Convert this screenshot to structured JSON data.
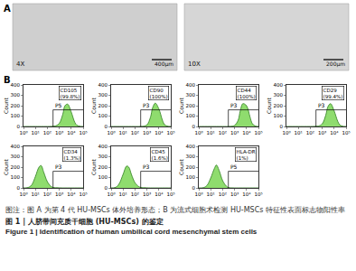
{
  "panel_a": {
    "label": "A",
    "images": [
      {
        "magnification": "4X",
        "scale_bar": "400μm"
      },
      {
        "magnification": "10X",
        "scale_bar": "200μm"
      }
    ]
  },
  "panel_b": {
    "label": "B"
  },
  "chart_data": [
    {
      "type": "area",
      "title": "CD105",
      "percent_label": "(99.8%)",
      "gate": {
        "label": "P5",
        "range": [
          300,
          100000
        ]
      },
      "ylabel": "Count",
      "color": "#8fdc6e",
      "x": [
        1,
        2,
        3,
        5,
        10,
        20,
        30,
        50,
        100,
        200,
        300,
        500,
        1000,
        2000,
        3000,
        5000,
        10000,
        20000,
        30000,
        50000,
        100000
      ],
      "values": [
        0,
        0,
        0,
        0,
        0,
        0,
        0,
        0,
        0,
        1,
        2,
        6,
        30,
        120,
        200,
        215,
        140,
        40,
        12,
        3,
        0
      ],
      "xlim": [
        1,
        100000
      ],
      "log": "x",
      "xticks": [
        {
          "value": 1,
          "label": "10⁰"
        },
        {
          "value": 10,
          "label": "10¹"
        },
        {
          "value": 100,
          "label": "10²"
        },
        {
          "value": 1000,
          "label": "10³"
        },
        {
          "value": 10000,
          "label": "10⁴"
        },
        {
          "value": 100000,
          "label": "10⁵"
        }
      ],
      "ylim": [
        0,
        400
      ],
      "yticks": [
        0,
        100,
        200,
        300,
        400
      ]
    },
    {
      "type": "area",
      "title": "CD90",
      "percent_label": "(100%)",
      "gate": {
        "label": "P3",
        "range": [
          300,
          100000
        ]
      },
      "ylabel": "Count",
      "color": "#8fdc6e",
      "x": [
        1,
        2,
        3,
        5,
        10,
        20,
        30,
        50,
        100,
        200,
        300,
        500,
        1000,
        2000,
        3000,
        5000,
        10000,
        20000,
        30000,
        50000,
        100000
      ],
      "values": [
        0,
        0,
        0,
        0,
        0,
        0,
        0,
        0,
        0,
        0,
        1,
        3,
        15,
        90,
        180,
        225,
        170,
        60,
        18,
        4,
        0
      ],
      "xlim": [
        1,
        100000
      ],
      "log": "x",
      "xticks": [
        {
          "value": 1,
          "label": "10⁰"
        },
        {
          "value": 10,
          "label": "10¹"
        },
        {
          "value": 100,
          "label": "10²"
        },
        {
          "value": 1000,
          "label": "10³"
        },
        {
          "value": 10000,
          "label": "10⁴"
        },
        {
          "value": 100000,
          "label": "10⁵"
        }
      ],
      "ylim": [
        0,
        400
      ],
      "yticks": [
        0,
        100,
        200,
        300,
        400
      ]
    },
    {
      "type": "area",
      "title": "CD44",
      "percent_label": "(100%)",
      "gate": {
        "label": "P3",
        "range": [
          300,
          100000
        ]
      },
      "ylabel": "Count",
      "color": "#8fdc6e",
      "x": [
        1,
        2,
        3,
        5,
        10,
        20,
        30,
        50,
        100,
        200,
        300,
        500,
        1000,
        2000,
        3000,
        5000,
        10000,
        20000,
        30000,
        50000,
        100000
      ],
      "values": [
        0,
        0,
        0,
        0,
        0,
        0,
        0,
        0,
        0,
        0,
        0,
        2,
        10,
        60,
        150,
        220,
        200,
        90,
        30,
        6,
        0
      ],
      "xlim": [
        1,
        100000
      ],
      "log": "x",
      "xticks": [
        {
          "value": 1,
          "label": "10⁰"
        },
        {
          "value": 10,
          "label": "10¹"
        },
        {
          "value": 100,
          "label": "10²"
        },
        {
          "value": 1000,
          "label": "10³"
        },
        {
          "value": 10000,
          "label": "10⁴"
        },
        {
          "value": 100000,
          "label": "10⁵"
        }
      ],
      "ylim": [
        0,
        400
      ],
      "yticks": [
        0,
        100,
        200,
        300,
        400
      ]
    },
    {
      "type": "area",
      "title": "CD29",
      "percent_label": "(99.4%)",
      "gate": {
        "label": "P3",
        "range": [
          300,
          100000
        ]
      },
      "ylabel": "Count",
      "color": "#8fdc6e",
      "x": [
        1,
        2,
        3,
        5,
        10,
        20,
        30,
        50,
        100,
        200,
        300,
        500,
        1000,
        2000,
        3000,
        5000,
        10000,
        20000,
        30000,
        50000,
        100000
      ],
      "values": [
        0,
        0,
        0,
        0,
        0,
        0,
        0,
        0,
        0,
        1,
        2,
        5,
        25,
        110,
        190,
        220,
        150,
        50,
        15,
        3,
        0
      ],
      "xlim": [
        1,
        100000
      ],
      "log": "x",
      "xticks": [
        {
          "value": 1,
          "label": "10⁰"
        },
        {
          "value": 10,
          "label": "10¹"
        },
        {
          "value": 100,
          "label": "10²"
        },
        {
          "value": 1000,
          "label": "10³"
        },
        {
          "value": 10000,
          "label": "10⁴"
        },
        {
          "value": 100000,
          "label": "10⁵"
        }
      ],
      "ylim": [
        0,
        400
      ],
      "yticks": [
        0,
        100,
        200,
        300,
        400
      ]
    },
    {
      "type": "area",
      "title": "CD34",
      "percent_label": "(1.3%)",
      "gate": {
        "label": "P3",
        "range": [
          300,
          100000
        ]
      },
      "ylabel": "Count",
      "color": "#8fdc6e",
      "x": [
        1,
        2,
        3,
        5,
        10,
        20,
        30,
        50,
        100,
        200,
        300,
        500,
        1000,
        2000,
        3000,
        5000,
        10000,
        20000,
        30000,
        50000,
        100000
      ],
      "values": [
        0,
        2,
        8,
        30,
        110,
        200,
        215,
        150,
        60,
        15,
        5,
        2,
        1,
        0,
        0,
        0,
        0,
        0,
        0,
        0,
        0
      ],
      "xlim": [
        1,
        100000
      ],
      "log": "x",
      "xticks": [
        {
          "value": 1,
          "label": "10⁰"
        },
        {
          "value": 10,
          "label": "10¹"
        },
        {
          "value": 100,
          "label": "10²"
        },
        {
          "value": 1000,
          "label": "10³"
        },
        {
          "value": 10000,
          "label": "10⁴"
        },
        {
          "value": 100000,
          "label": "10⁵"
        }
      ],
      "ylim": [
        0,
        400
      ],
      "yticks": [
        0,
        100,
        200,
        300,
        400
      ]
    },
    {
      "type": "area",
      "title": "CD45",
      "percent_label": "(1.6%)",
      "gate": {
        "label": "P3",
        "range": [
          300,
          100000
        ]
      },
      "ylabel": "Count",
      "color": "#8fdc6e",
      "x": [
        1,
        2,
        3,
        5,
        10,
        20,
        30,
        50,
        100,
        200,
        300,
        500,
        1000,
        2000,
        3000,
        5000,
        10000,
        20000,
        30000,
        50000,
        100000
      ],
      "values": [
        0,
        3,
        12,
        45,
        130,
        210,
        200,
        130,
        50,
        14,
        5,
        2,
        1,
        0,
        0,
        0,
        0,
        0,
        0,
        0,
        0
      ],
      "xlim": [
        1,
        100000
      ],
      "log": "x",
      "xticks": [
        {
          "value": 1,
          "label": "10⁰"
        },
        {
          "value": 10,
          "label": "10¹"
        },
        {
          "value": 100,
          "label": "10²"
        },
        {
          "value": 1000,
          "label": "10³"
        },
        {
          "value": 10000,
          "label": "10⁴"
        },
        {
          "value": 100000,
          "label": "10⁵"
        }
      ],
      "ylim": [
        0,
        400
      ],
      "yticks": [
        0,
        100,
        200,
        300,
        400
      ]
    },
    {
      "type": "area",
      "title": "HLA-DR",
      "percent_label": "(1%)",
      "gate": {
        "label": "P5",
        "range": [
          300,
          100000
        ]
      },
      "ylabel": "Count",
      "color": "#8fdc6e",
      "x": [
        1,
        2,
        3,
        5,
        10,
        20,
        30,
        50,
        100,
        200,
        300,
        500,
        1000,
        2000,
        3000,
        5000,
        10000,
        20000,
        30000,
        50000,
        100000
      ],
      "values": [
        0,
        1,
        6,
        25,
        95,
        185,
        220,
        170,
        70,
        18,
        4,
        1,
        0,
        0,
        0,
        0,
        0,
        0,
        0,
        0,
        0
      ],
      "xlim": [
        1,
        100000
      ],
      "log": "x",
      "xticks": [
        {
          "value": 1,
          "label": "10⁰"
        },
        {
          "value": 10,
          "label": "10¹"
        },
        {
          "value": 100,
          "label": "10²"
        },
        {
          "value": 1000,
          "label": "10³"
        },
        {
          "value": 10000,
          "label": "10⁴"
        },
        {
          "value": 100000,
          "label": "10⁵"
        }
      ],
      "ylim": [
        0,
        400
      ],
      "yticks": [
        0,
        100,
        200,
        300,
        400
      ]
    }
  ],
  "caption": {
    "note": "图注：图 A 为第 4 代 HU-MSCs 体外培养形态；B 为流式细胞术检测 HU-MSCs 特征性表面标志物阳性率",
    "title_zh": "图 1 | 人脐带间充质干细胞 (HU-MSCs) 的鉴定",
    "title_en": "Figure 1 | Identification of human umbilical cord mesenchymal stem cells"
  }
}
